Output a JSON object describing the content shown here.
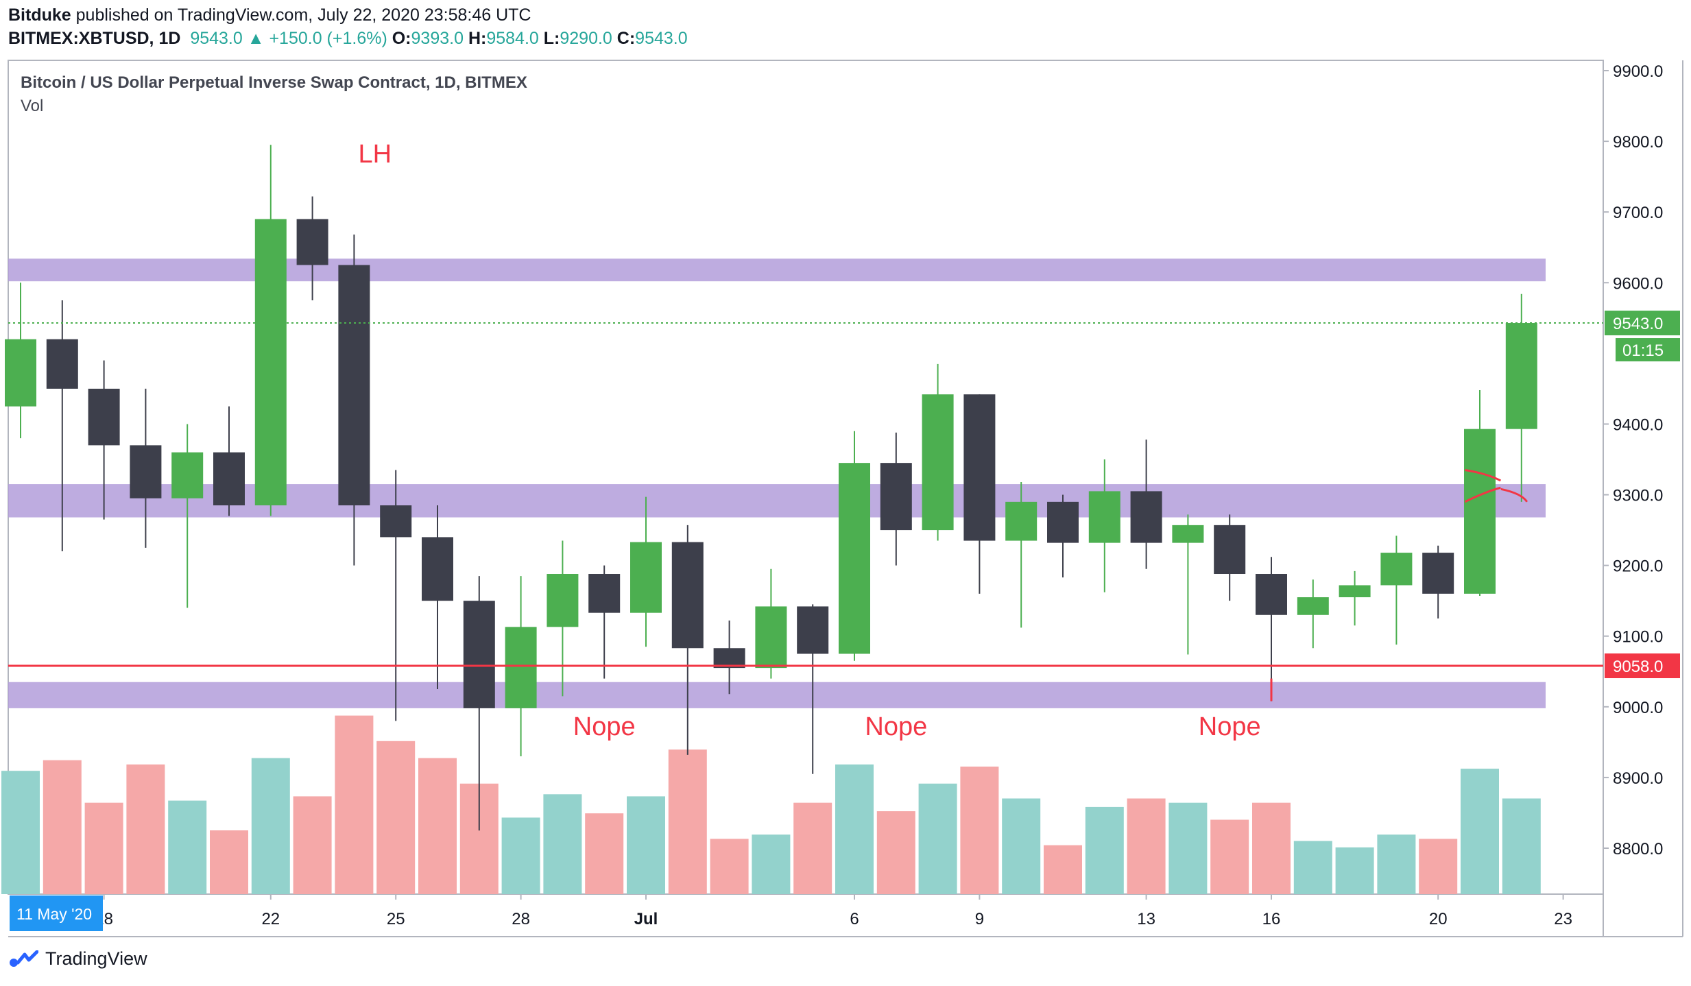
{
  "header": {
    "publisher": "Bitduke",
    "published_text": "published on TradingView.com, July 22, 2020 23:58:46 UTC",
    "symbol": "BITMEX:XBTUSD, 1D",
    "last": "9543.0",
    "change_arrow": "▲",
    "change": "+150.0 (+1.6%)",
    "o_label": "O:",
    "o_value": "9393.0",
    "h_label": "H:",
    "h_value": "9584.0",
    "l_label": "L:",
    "l_value": "9290.0",
    "c_label": "C:",
    "c_value": "9543.0"
  },
  "legend": {
    "title": "Bitcoin / US Dollar Perpetual Inverse Swap Contract, 1D, BITMEX",
    "vol_label": "Vol"
  },
  "footer": {
    "brand": "TradingView",
    "logo_icon": "tradingview-logo-icon"
  },
  "colors": {
    "up": "#4caf50",
    "down": "#3d3f4b",
    "vol_up": "#93d2cc",
    "vol_down": "#f5a8a8",
    "zone": "#b39ddb",
    "support_line": "#f23645",
    "annotation": "#f23645",
    "axis_text": "#131722",
    "last_price_bg": "#4caf50"
  },
  "chart_data": {
    "type": "candlestick",
    "ylim": [
      8740,
      9920
    ],
    "y_ticks": [
      8800,
      8900,
      9000,
      9100,
      9200,
      9300,
      9400,
      9500,
      9600,
      9700,
      9800,
      9900
    ],
    "y_tick_labels": [
      "8800.0",
      "8900.0",
      "9000.0",
      "9100.0",
      "9200.0",
      "9300.0",
      "9400.0",
      "9500.0",
      "9600.0",
      "9700.0",
      "9800.0",
      "9900.0"
    ],
    "x_ticks": [
      {
        "index": 2,
        "label": "18"
      },
      {
        "index": 6,
        "label": "22"
      },
      {
        "index": 9,
        "label": "25"
      },
      {
        "index": 12,
        "label": "28"
      },
      {
        "index": 15,
        "label": "Jul",
        "bold": true
      },
      {
        "index": 20,
        "label": "6"
      },
      {
        "index": 23,
        "label": "9"
      },
      {
        "index": 27,
        "label": "13"
      },
      {
        "index": 30,
        "label": "16"
      },
      {
        "index": 34,
        "label": "20"
      },
      {
        "index": 37,
        "label": "23"
      }
    ],
    "date_badge": {
      "index": 1,
      "label": "11 May '20"
    },
    "candles": [
      {
        "o": 9425,
        "h": 9600,
        "l": 9380,
        "c": 9520
      },
      {
        "o": 9520,
        "h": 9575,
        "l": 9220,
        "c": 9450
      },
      {
        "o": 9450,
        "h": 9490,
        "l": 9265,
        "c": 9370
      },
      {
        "o": 9370,
        "h": 9450,
        "l": 9225,
        "c": 9295
      },
      {
        "o": 9295,
        "h": 9400,
        "l": 9140,
        "c": 9360
      },
      {
        "o": 9360,
        "h": 9425,
        "l": 9270,
        "c": 9285
      },
      {
        "o": 9285,
        "h": 9795,
        "l": 9270,
        "c": 9690
      },
      {
        "o": 9690,
        "h": 9722,
        "l": 9575,
        "c": 9625
      },
      {
        "o": 9625,
        "h": 9668,
        "l": 9200,
        "c": 9285
      },
      {
        "o": 9285,
        "h": 9335,
        "l": 8980,
        "c": 9240
      },
      {
        "o": 9240,
        "h": 9285,
        "l": 9025,
        "c": 9150
      },
      {
        "o": 9150,
        "h": 9185,
        "l": 8825,
        "c": 8998
      },
      {
        "o": 8998,
        "h": 9185,
        "l": 8930,
        "c": 9113
      },
      {
        "o": 9113,
        "h": 9235,
        "l": 9015,
        "c": 9188
      },
      {
        "o": 9188,
        "h": 9200,
        "l": 9040,
        "c": 9133
      },
      {
        "o": 9133,
        "h": 9297,
        "l": 9085,
        "c": 9233
      },
      {
        "o": 9233,
        "h": 9257,
        "l": 8932,
        "c": 9083
      },
      {
        "o": 9083,
        "h": 9122,
        "l": 9018,
        "c": 9055
      },
      {
        "o": 9055,
        "h": 9195,
        "l": 9040,
        "c": 9142
      },
      {
        "o": 9142,
        "h": 9145,
        "l": 8905,
        "c": 9075
      },
      {
        "o": 9075,
        "h": 9390,
        "l": 9065,
        "c": 9345
      },
      {
        "o": 9345,
        "h": 9388,
        "l": 9200,
        "c": 9250
      },
      {
        "o": 9250,
        "h": 9485,
        "l": 9235,
        "c": 9442
      },
      {
        "o": 9442,
        "h": 9442,
        "l": 9160,
        "c": 9235
      },
      {
        "o": 9235,
        "h": 9318,
        "l": 9112,
        "c": 9290
      },
      {
        "o": 9290,
        "h": 9300,
        "l": 9183,
        "c": 9232
      },
      {
        "o": 9232,
        "h": 9350,
        "l": 9162,
        "c": 9305
      },
      {
        "o": 9305,
        "h": 9378,
        "l": 9195,
        "c": 9232
      },
      {
        "o": 9232,
        "h": 9272,
        "l": 9074,
        "c": 9257
      },
      {
        "o": 9257,
        "h": 9272,
        "l": 9150,
        "c": 9188
      },
      {
        "o": 9188,
        "h": 9212,
        "l": 9008,
        "c": 9130
      },
      {
        "o": 9130,
        "h": 9180,
        "l": 9083,
        "c": 9155
      },
      {
        "o": 9155,
        "h": 9192,
        "l": 9115,
        "c": 9172
      },
      {
        "o": 9172,
        "h": 9242,
        "l": 9088,
        "c": 9218
      },
      {
        "o": 9218,
        "h": 9228,
        "l": 9125,
        "c": 9160
      },
      {
        "o": 9160,
        "h": 9448,
        "l": 9157,
        "c": 9393
      },
      {
        "o": 9393,
        "h": 9584,
        "l": 9290,
        "c": 9543
      }
    ],
    "volume": [
      0.58,
      0.63,
      0.43,
      0.61,
      0.44,
      0.3,
      0.64,
      0.46,
      0.84,
      0.72,
      0.64,
      0.52,
      0.36,
      0.47,
      0.38,
      0.46,
      0.68,
      0.26,
      0.28,
      0.43,
      0.61,
      0.39,
      0.52,
      0.6,
      0.45,
      0.23,
      0.41,
      0.45,
      0.43,
      0.35,
      0.43,
      0.25,
      0.22,
      0.28,
      0.26,
      0.59,
      0.45
    ],
    "zones": [
      [
        9602,
        9634
      ],
      [
        9268,
        9315
      ],
      [
        8998,
        9035
      ]
    ],
    "support_level": 9058,
    "support_label": "9058.0",
    "last_price": 9543,
    "last_price_label": "9543.0",
    "countdown_label": "01:15",
    "annotations": [
      {
        "text": "LH",
        "index": 8.5,
        "y": 9770
      },
      {
        "text": "Nope",
        "index": 14,
        "y": 8960
      },
      {
        "text": "Nope",
        "index": 21,
        "y": 8960
      },
      {
        "text": "Nope",
        "index": 29,
        "y": 8960
      }
    ]
  }
}
